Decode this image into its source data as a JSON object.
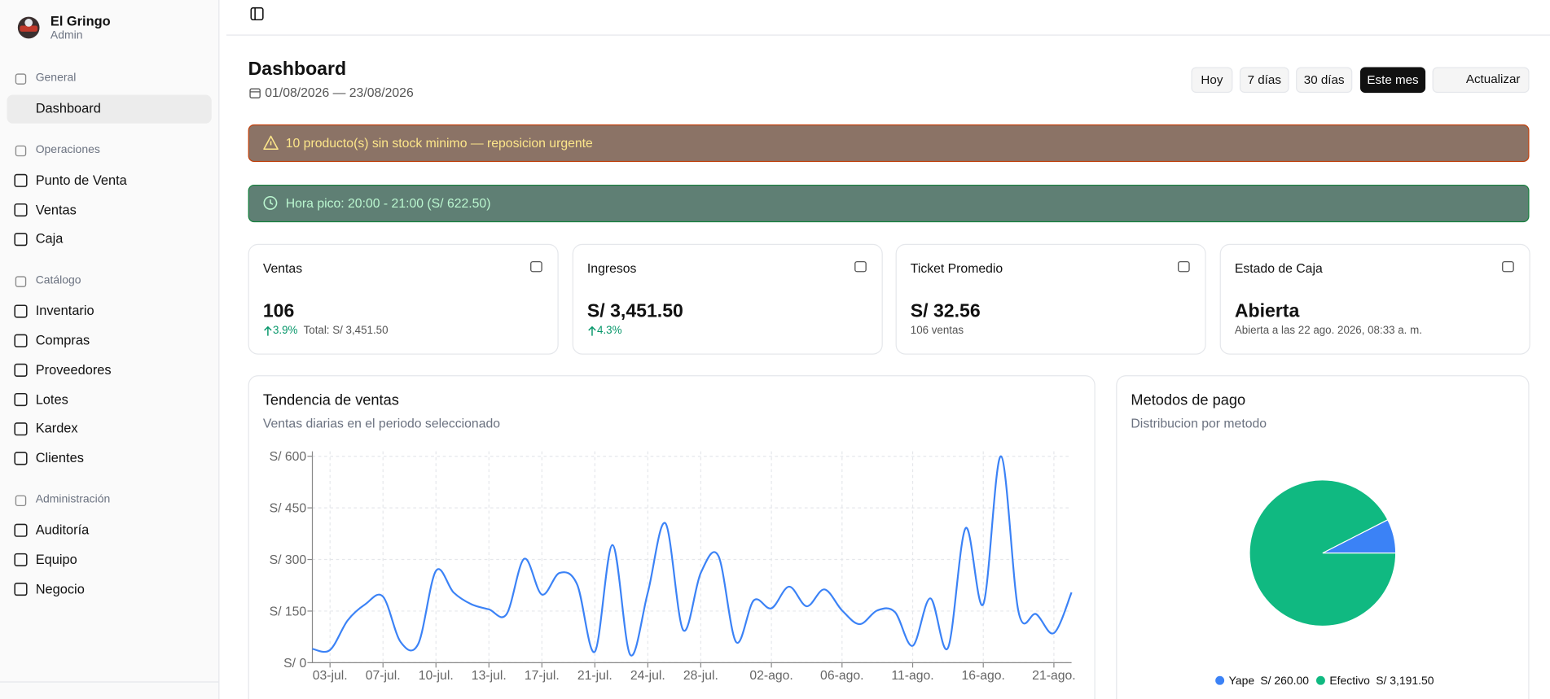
{
  "sidebar": {
    "brand": "El Gringo",
    "role": "Admin",
    "sections": [
      {
        "title": "General",
        "items": [
          "Dashboard"
        ]
      },
      {
        "title": "Operaciones",
        "items": [
          "Punto de Venta",
          "Ventas",
          "Caja"
        ]
      },
      {
        "title": "Catálogo",
        "items": [
          "Inventario",
          "Compras",
          "Proveedores",
          "Lotes",
          "Kardex",
          "Clientes"
        ]
      },
      {
        "title": "Administración",
        "items": [
          "Auditoría",
          "Equipo",
          "Negocio"
        ]
      }
    ]
  },
  "header": {
    "title": "Dashboard",
    "date_range": "01/08/2026 — 23/08/2026",
    "filters": [
      "Hoy",
      "7 días",
      "30 días",
      "Este mes"
    ],
    "refresh": "Actualizar"
  },
  "alerts": [
    "10 producto(s) sin stock minimo — reposicion urgente",
    "Hora pico: 20:00 - 21:00 (S/ 622.50)"
  ],
  "cards": [
    {
      "label": "Ventas",
      "value": "106",
      "change": "3.9%",
      "note": "Total: S/ 3,451.50"
    },
    {
      "label": "Ingresos",
      "value": "S/ 3,451.50",
      "change": "4.3%"
    },
    {
      "label": "Ticket Promedio",
      "value": "S/ 32.56",
      "note": "106 ventas"
    },
    {
      "label": "Estado de Caja",
      "value": "Abierta",
      "note": "Abierta a las 22 ago. 2026, 08:33 a. m."
    }
  ],
  "chart_data": [
    {
      "type": "line",
      "title": "Tendencia de ventas",
      "subtitle": "Ventas diarias en el periodo seleccionado",
      "categories": [
        null,
        "03-jul.",
        null,
        null,
        "07-jul.",
        null,
        null,
        "10-jul.",
        null,
        null,
        "13-jul.",
        null,
        null,
        "17-jul.",
        null,
        null,
        "21-jul.",
        null,
        null,
        "24-jul.",
        null,
        null,
        "28-jul.",
        null,
        null,
        null,
        "02-ago.",
        null,
        null,
        null,
        "06-ago.",
        null,
        null,
        null,
        "11-ago.",
        null,
        null,
        null,
        "16-ago.",
        null,
        null,
        null,
        "21-ago.",
        null
      ],
      "series": [
        {
          "name": "Ventas",
          "color": "#3b82f6",
          "values": [
            40,
            37,
            123,
            170,
            192,
            60,
            55,
            267,
            204,
            170,
            155,
            141,
            302,
            198,
            261,
            227,
            32,
            342,
            23,
            204,
            405,
            95,
            261,
            310,
            60,
            181,
            158,
            221,
            164,
            213,
            152,
            112,
            152,
            147,
            49,
            187,
            43,
            391,
            170,
            600,
            147,
            141,
            86,
            204
          ]
        }
      ],
      "ylim": [
        0,
        600
      ],
      "yticks": [
        {
          "value": 0,
          "label": "S/ 0"
        },
        {
          "value": 150,
          "label": "S/ 150"
        },
        {
          "value": 300,
          "label": "S/ 300"
        },
        {
          "value": 450,
          "label": "S/ 450"
        },
        {
          "value": 600,
          "label": "S/ 600"
        }
      ],
      "grid": true
    },
    {
      "type": "pie",
      "title": "Metodos de pago",
      "subtitle": "Distribucion por metodo",
      "categories": [
        "Yape",
        "Efectivo"
      ],
      "values": [
        260,
        3191.5
      ],
      "value_labels": [
        "S/ 260.00",
        "S/ 3,191.50"
      ],
      "colors": [
        "#3b82f6",
        "#10b981"
      ]
    }
  ]
}
